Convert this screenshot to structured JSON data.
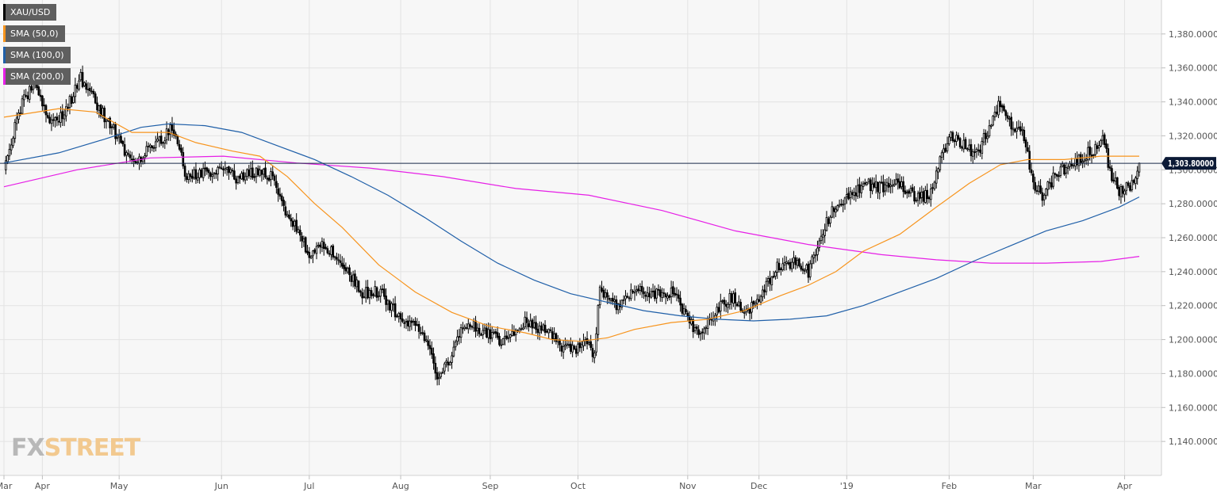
{
  "chart_data": {
    "type": "candlestick",
    "symbol": "XAU/USD",
    "legend": [
      {
        "label": "XAU/USD",
        "color": "#000000"
      },
      {
        "label": "SMA (50,0)",
        "color": "#f7941d"
      },
      {
        "label": "SMA (100,0)",
        "color": "#1f5fa8"
      },
      {
        "label": "SMA (200,0)",
        "color": "#e61fe6"
      }
    ],
    "legend_position": "top-left",
    "grid": true,
    "ylim": [
      1120,
      1400
    ],
    "y_ticks": [
      1140,
      1160,
      1180,
      1200,
      1220,
      1240,
      1260,
      1280,
      1300,
      1320,
      1340,
      1360,
      1380
    ],
    "y_tick_labels": [
      "1,140.0000",
      "1,160.0000",
      "1,180.0000",
      "1,200.0000",
      "1,220.0000",
      "1,240.0000",
      "1,260.0000",
      "1,280.0000",
      "1,300.0000",
      "1,320.0000",
      "1,340.0000",
      "1,360.0000",
      "1,380.0000"
    ],
    "x_labels": [
      {
        "label": "Mar",
        "index": 0
      },
      {
        "label": "Apr",
        "index": 21
      },
      {
        "label": "May",
        "index": 63
      },
      {
        "label": "Jun",
        "index": 119
      },
      {
        "label": "Jul",
        "index": 167
      },
      {
        "label": "Aug",
        "index": 217
      },
      {
        "label": "Sep",
        "index": 266
      },
      {
        "label": "Oct",
        "index": 314
      },
      {
        "label": "Nov",
        "index": 374
      },
      {
        "label": "Dec",
        "index": 413
      },
      {
        "label": "'19",
        "index": 461
      },
      {
        "label": "Feb",
        "index": 517
      },
      {
        "label": "Mar",
        "index": 563
      },
      {
        "label": "Apr",
        "index": 613
      }
    ],
    "bar_count": 622,
    "current_price": 1303.8,
    "current_price_label": "1,303.80000",
    "price_path": [
      [
        0,
        1303
      ],
      [
        10,
        1340
      ],
      [
        17,
        1352
      ],
      [
        24,
        1328
      ],
      [
        33,
        1333
      ],
      [
        42,
        1354
      ],
      [
        50,
        1340
      ],
      [
        63,
        1318
      ],
      [
        70,
        1303
      ],
      [
        84,
        1316
      ],
      [
        92,
        1325
      ],
      [
        100,
        1296
      ],
      [
        110,
        1298
      ],
      [
        119,
        1300
      ],
      [
        128,
        1295
      ],
      [
        140,
        1300
      ],
      [
        147,
        1295
      ],
      [
        155,
        1272
      ],
      [
        162,
        1262
      ],
      [
        167,
        1248
      ],
      [
        175,
        1257
      ],
      [
        184,
        1244
      ],
      [
        196,
        1228
      ],
      [
        206,
        1228
      ],
      [
        217,
        1212
      ],
      [
        228,
        1205
      ],
      [
        237,
        1180
      ],
      [
        244,
        1188
      ],
      [
        252,
        1210
      ],
      [
        262,
        1205
      ],
      [
        273,
        1198
      ],
      [
        285,
        1210
      ],
      [
        296,
        1205
      ],
      [
        305,
        1196
      ],
      [
        314,
        1195
      ],
      [
        319,
        1200
      ],
      [
        323,
        1190
      ],
      [
        326,
        1230
      ],
      [
        336,
        1220
      ],
      [
        346,
        1230
      ],
      [
        356,
        1227
      ],
      [
        366,
        1228
      ],
      [
        374,
        1213
      ],
      [
        380,
        1202
      ],
      [
        389,
        1217
      ],
      [
        398,
        1225
      ],
      [
        405,
        1215
      ],
      [
        413,
        1222
      ],
      [
        423,
        1244
      ],
      [
        433,
        1245
      ],
      [
        440,
        1240
      ],
      [
        444,
        1252
      ],
      [
        452,
        1274
      ],
      [
        461,
        1283
      ],
      [
        470,
        1292
      ],
      [
        480,
        1290
      ],
      [
        490,
        1291
      ],
      [
        500,
        1283
      ],
      [
        506,
        1285
      ],
      [
        512,
        1305
      ],
      [
        517,
        1320
      ],
      [
        523,
        1316
      ],
      [
        532,
        1309
      ],
      [
        539,
        1325
      ],
      [
        544,
        1338
      ],
      [
        551,
        1325
      ],
      [
        558,
        1320
      ],
      [
        563,
        1290
      ],
      [
        568,
        1285
      ],
      [
        576,
        1298
      ],
      [
        586,
        1305
      ],
      [
        596,
        1312
      ],
      [
        602,
        1318
      ],
      [
        605,
        1298
      ],
      [
        610,
        1288
      ],
      [
        616,
        1290
      ],
      [
        619,
        1293
      ],
      [
        621,
        1304
      ]
    ],
    "sma50": [
      [
        0,
        1331
      ],
      [
        30,
        1336
      ],
      [
        50,
        1334
      ],
      [
        70,
        1322
      ],
      [
        90,
        1322
      ],
      [
        105,
        1316
      ],
      [
        125,
        1311
      ],
      [
        140,
        1308
      ],
      [
        155,
        1296
      ],
      [
        170,
        1280
      ],
      [
        185,
        1266
      ],
      [
        205,
        1244
      ],
      [
        225,
        1228
      ],
      [
        245,
        1216
      ],
      [
        265,
        1208
      ],
      [
        285,
        1204
      ],
      [
        300,
        1200
      ],
      [
        315,
        1199
      ],
      [
        330,
        1201
      ],
      [
        345,
        1206
      ],
      [
        365,
        1210
      ],
      [
        385,
        1212
      ],
      [
        405,
        1217
      ],
      [
        425,
        1226
      ],
      [
        440,
        1232
      ],
      [
        455,
        1240
      ],
      [
        470,
        1252
      ],
      [
        490,
        1262
      ],
      [
        510,
        1278
      ],
      [
        528,
        1292
      ],
      [
        545,
        1303
      ],
      [
        560,
        1306
      ],
      [
        580,
        1306
      ],
      [
        600,
        1308
      ],
      [
        621,
        1308
      ]
    ],
    "sma100": [
      [
        0,
        1304
      ],
      [
        30,
        1310
      ],
      [
        55,
        1318
      ],
      [
        75,
        1325
      ],
      [
        90,
        1327
      ],
      [
        110,
        1326
      ],
      [
        130,
        1322
      ],
      [
        150,
        1314
      ],
      [
        170,
        1306
      ],
      [
        190,
        1296
      ],
      [
        210,
        1285
      ],
      [
        230,
        1272
      ],
      [
        250,
        1258
      ],
      [
        270,
        1245
      ],
      [
        290,
        1235
      ],
      [
        310,
        1227
      ],
      [
        330,
        1222
      ],
      [
        350,
        1217
      ],
      [
        370,
        1214
      ],
      [
        390,
        1212
      ],
      [
        410,
        1211
      ],
      [
        430,
        1212
      ],
      [
        450,
        1214
      ],
      [
        470,
        1220
      ],
      [
        490,
        1228
      ],
      [
        510,
        1236
      ],
      [
        530,
        1246
      ],
      [
        550,
        1255
      ],
      [
        570,
        1264
      ],
      [
        590,
        1270
      ],
      [
        610,
        1278
      ],
      [
        621,
        1284
      ]
    ],
    "sma200": [
      [
        0,
        1290
      ],
      [
        40,
        1300
      ],
      [
        80,
        1307
      ],
      [
        120,
        1308
      ],
      [
        160,
        1304
      ],
      [
        200,
        1301
      ],
      [
        240,
        1296
      ],
      [
        280,
        1289
      ],
      [
        320,
        1285
      ],
      [
        360,
        1276
      ],
      [
        400,
        1264
      ],
      [
        440,
        1256
      ],
      [
        480,
        1250
      ],
      [
        510,
        1247
      ],
      [
        540,
        1245
      ],
      [
        570,
        1245
      ],
      [
        600,
        1246
      ],
      [
        621,
        1249
      ]
    ]
  },
  "watermark": {
    "fx": "FX",
    "street": "STREET"
  }
}
